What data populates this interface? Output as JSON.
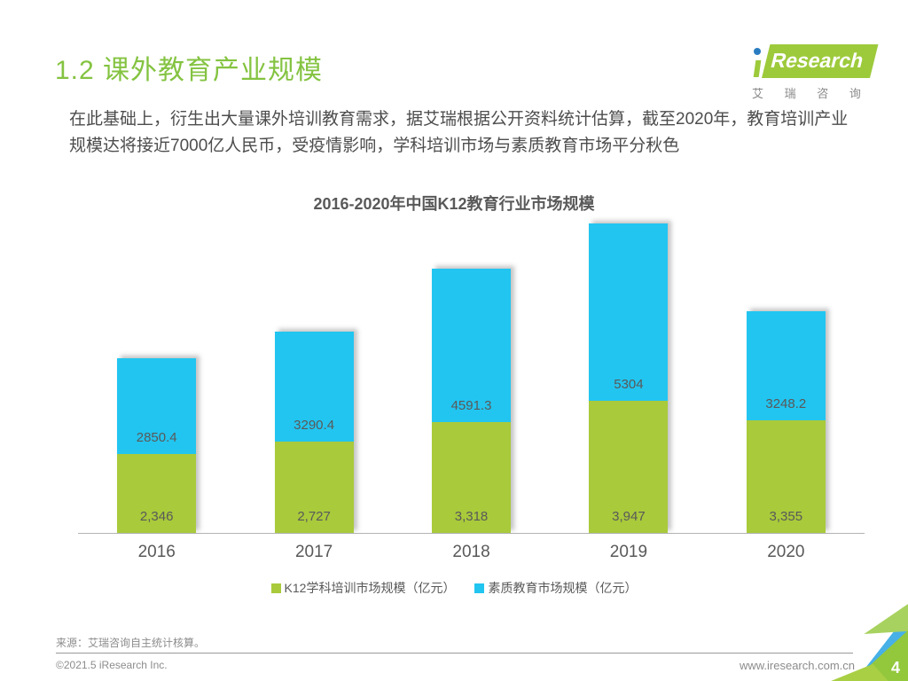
{
  "header": {
    "title": "1.2 课外教育产业规模"
  },
  "logo": {
    "brand_i": "i",
    "brand_text": "Research",
    "brand_cn": "艾 瑞 咨 询"
  },
  "intro": {
    "text": "在此基础上，衍生出大量课外培训教育需求，据艾瑞根据公开资料统计估算，截至2020年，教育培训产业规模达将接近7000亿人民币，受疫情影响，学科培训市场与素质教育市场平分秋色"
  },
  "chart_data": {
    "type": "bar",
    "stacked": true,
    "title": "2016-2020年中国K12教育行业市场规模",
    "categories": [
      "2016",
      "2017",
      "2018",
      "2019",
      "2020"
    ],
    "series": [
      {
        "name": "K12学科培训市场规模（亿元）",
        "color": "#a9ca3b",
        "values": [
          2346,
          2727,
          3318,
          3947,
          3355
        ],
        "labels": [
          "2,346",
          "2,727",
          "3,318",
          "3,947",
          "3,355"
        ]
      },
      {
        "name": "素质教育市场规模（亿元）",
        "color": "#22c5f0",
        "values": [
          2850.4,
          3290.4,
          4591.3,
          5304,
          3248.2
        ],
        "labels": [
          "2850.4",
          "3290.4",
          "4591.3",
          "5304",
          "3248.2"
        ]
      }
    ],
    "totals": [
      5196.4,
      6017.4,
      7909.3,
      9251,
      6603.2
    ],
    "xlabel": "",
    "ylabel": "",
    "ylim": [
      0,
      9540
    ],
    "grid": false,
    "legend_position": "bottom",
    "value_label_color": "#595959"
  },
  "theme": {
    "title_green": "#84c341",
    "bar_green": "#a9ca3b",
    "bar_blue": "#22c5f0",
    "logo_green": "#9dca3b",
    "logo_dot_blue": "#2a7cc0",
    "text_gray": "#595959",
    "footer_gray": "#8c8c8c"
  },
  "footer": {
    "source": "来源：艾瑞咨询自主统计核算。",
    "copyright": "©2021.5 iResearch Inc.",
    "website": "www.iresearch.com.cn",
    "page_number": "4"
  }
}
